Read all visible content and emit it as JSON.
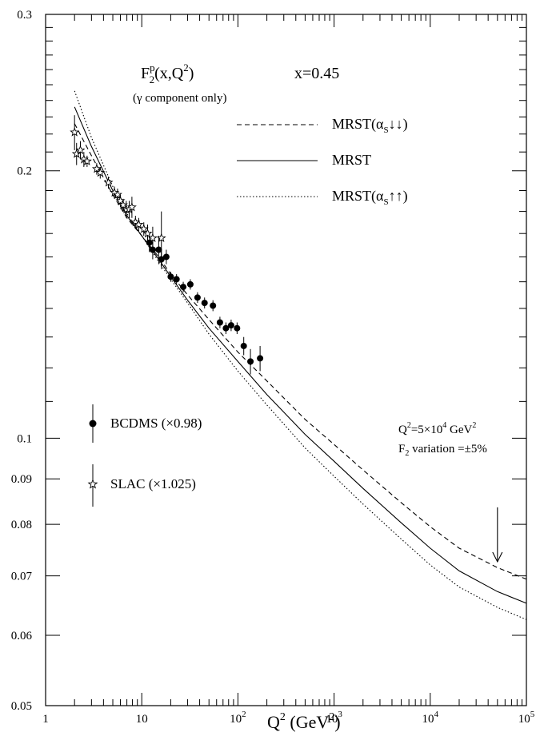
{
  "chart_data": {
    "type": "line",
    "x_scale": "log",
    "y_scale": "log",
    "xlim": [
      1,
      100000
    ],
    "ylim": [
      0.05,
      0.3
    ],
    "x_ticks": [
      {
        "value": 1,
        "label": "1"
      },
      {
        "value": 10,
        "label": "10"
      },
      {
        "value": 100,
        "base": "10",
        "exp": "2"
      },
      {
        "value": 1000,
        "base": "10",
        "exp": "3"
      },
      {
        "value": 10000,
        "base": "10",
        "exp": "4"
      },
      {
        "value": 100000,
        "base": "10",
        "exp": "5"
      }
    ],
    "y_ticks": [
      {
        "value": 0.05,
        "label": "0.05"
      },
      {
        "value": 0.06,
        "label": "0.06"
      },
      {
        "value": 0.07,
        "label": "0.07"
      },
      {
        "value": 0.08,
        "label": "0.08"
      },
      {
        "value": 0.09,
        "label": "0.09"
      },
      {
        "value": 0.1,
        "label": "0.1"
      },
      {
        "value": 0.2,
        "label": "0.2"
      },
      {
        "value": 0.3,
        "label": "0.3"
      }
    ],
    "xlabel": {
      "base": "Q",
      "exp": "2",
      "unit": " (GeV",
      "unit_exp": "2",
      "close": ")"
    },
    "title": {
      "f": "F",
      "sup": "p",
      "sub": "2",
      "arg": "(x,Q",
      "arg_exp": "2",
      "arg_close": ")"
    },
    "subtitle": "(γ component only)",
    "x_label_text": "x=0.45",
    "legend_lines": [
      {
        "name": "MRST(α",
        "sub": "S",
        "arrows": "↓↓",
        "close": ")",
        "style": "dashed"
      },
      {
        "name": "MRST",
        "sub": "",
        "arrows": "",
        "close": "",
        "style": "solid"
      },
      {
        "name": "MRST(α",
        "sub": "S",
        "arrows": "↑↑",
        "close": ")",
        "style": "dotted"
      }
    ],
    "legend_points": [
      {
        "name": "BCDMS (×0.98)",
        "marker": "circle"
      },
      {
        "name": "SLAC (×1.025)",
        "marker": "star"
      }
    ],
    "annotation": {
      "line1_base": "Q",
      "line1_exp": "2",
      "line1_mid": "=5×10",
      "line1_exp2": "4",
      "line1_unit": " GeV",
      "line1_exp3": "2",
      "line2_base": "F",
      "line2_sub": "2",
      "line2_rest": " variation =±5%",
      "arrow_x": 50000,
      "arrow_from_y": 0.0836,
      "arrow_to_y": 0.0726
    },
    "series": [
      {
        "name": "MRST(αS↓↓)",
        "style": "dashed",
        "x": [
          2,
          3,
          5,
          7,
          10,
          15,
          20,
          30,
          50,
          100,
          200,
          500,
          1000,
          2000,
          5000,
          10000,
          20000,
          50000,
          100000
        ],
        "y": [
          0.226,
          0.208,
          0.188,
          0.177,
          0.169,
          0.16,
          0.153,
          0.145,
          0.136,
          0.125,
          0.116,
          0.105,
          0.0984,
          0.0921,
          0.0846,
          0.0795,
          0.0752,
          0.0715,
          0.0694
        ]
      },
      {
        "name": "MRST",
        "style": "solid",
        "x": [
          2,
          3,
          5,
          7,
          10,
          15,
          20,
          30,
          50,
          100,
          200,
          500,
          1000,
          2000,
          5000,
          10000,
          20000,
          50000,
          100000
        ],
        "y": [
          0.236,
          0.213,
          0.19,
          0.178,
          0.169,
          0.159,
          0.152,
          0.143,
          0.133,
          0.122,
          0.112,
          0.101,
          0.0942,
          0.0878,
          0.0803,
          0.0752,
          0.0709,
          0.0672,
          0.0652
        ]
      },
      {
        "name": "MRST(αS↑↑)",
        "style": "dotted",
        "x": [
          2,
          3,
          5,
          7,
          10,
          15,
          20,
          30,
          50,
          100,
          200,
          500,
          1000,
          2000,
          5000,
          10000,
          20000,
          50000,
          100000
        ],
        "y": [
          0.246,
          0.218,
          0.192,
          0.179,
          0.169,
          0.158,
          0.151,
          0.142,
          0.131,
          0.119,
          0.109,
          0.0975,
          0.0906,
          0.0843,
          0.077,
          0.072,
          0.068,
          0.0645,
          0.0625
        ]
      },
      {
        "name": "BCDMS (×0.98)",
        "marker": "circle",
        "points": [
          {
            "x": 12,
            "y": 0.166,
            "err": 0.004
          },
          {
            "x": 13,
            "y": 0.163,
            "err": 0.004
          },
          {
            "x": 15,
            "y": 0.163,
            "err": 0.006
          },
          {
            "x": 16,
            "y": 0.159,
            "err": 0.004
          },
          {
            "x": 18,
            "y": 0.16,
            "err": 0.003
          },
          {
            "x": 20,
            "y": 0.152,
            "err": 0.002
          },
          {
            "x": 23,
            "y": 0.151,
            "err": 0.002
          },
          {
            "x": 27,
            "y": 0.148,
            "err": 0.002
          },
          {
            "x": 32,
            "y": 0.149,
            "err": 0.002
          },
          {
            "x": 38,
            "y": 0.144,
            "err": 0.002
          },
          {
            "x": 45,
            "y": 0.142,
            "err": 0.002
          },
          {
            "x": 55,
            "y": 0.141,
            "err": 0.002
          },
          {
            "x": 65,
            "y": 0.135,
            "err": 0.002
          },
          {
            "x": 75,
            "y": 0.133,
            "err": 0.002
          },
          {
            "x": 85,
            "y": 0.134,
            "err": 0.002
          },
          {
            "x": 98,
            "y": 0.133,
            "err": 0.002
          },
          {
            "x": 115,
            "y": 0.127,
            "err": 0.003
          },
          {
            "x": 135,
            "y": 0.122,
            "err": 0.004
          },
          {
            "x": 170,
            "y": 0.123,
            "err": 0.004
          }
        ]
      },
      {
        "name": "SLAC (×1.025)",
        "marker": "star",
        "points": [
          {
            "x": 2.0,
            "y": 0.221,
            "err": 0.01
          },
          {
            "x": 2.1,
            "y": 0.209,
            "err": 0.006
          },
          {
            "x": 2.3,
            "y": 0.211,
            "err": 0.005
          },
          {
            "x": 2.5,
            "y": 0.206,
            "err": 0.004
          },
          {
            "x": 2.7,
            "y": 0.205,
            "err": 0.003
          },
          {
            "x": 3.4,
            "y": 0.201,
            "err": 0.003
          },
          {
            "x": 3.7,
            "y": 0.199,
            "err": 0.003
          },
          {
            "x": 4.5,
            "y": 0.194,
            "err": 0.003
          },
          {
            "x": 5.2,
            "y": 0.189,
            "err": 0.003
          },
          {
            "x": 5.6,
            "y": 0.188,
            "err": 0.003
          },
          {
            "x": 6.0,
            "y": 0.185,
            "err": 0.003
          },
          {
            "x": 6.4,
            "y": 0.183,
            "err": 0.003
          },
          {
            "x": 6.9,
            "y": 0.181,
            "err": 0.004
          },
          {
            "x": 7.4,
            "y": 0.181,
            "err": 0.004
          },
          {
            "x": 7.9,
            "y": 0.182,
            "err": 0.005
          },
          {
            "x": 8.6,
            "y": 0.175,
            "err": 0.003
          },
          {
            "x": 9.3,
            "y": 0.174,
            "err": 0.003
          },
          {
            "x": 10.5,
            "y": 0.172,
            "err": 0.003
          },
          {
            "x": 11.5,
            "y": 0.17,
            "err": 0.004
          },
          {
            "x": 13.0,
            "y": 0.168,
            "err": 0.005
          },
          {
            "x": 16.0,
            "y": 0.168,
            "err": 0.012
          }
        ]
      }
    ]
  }
}
